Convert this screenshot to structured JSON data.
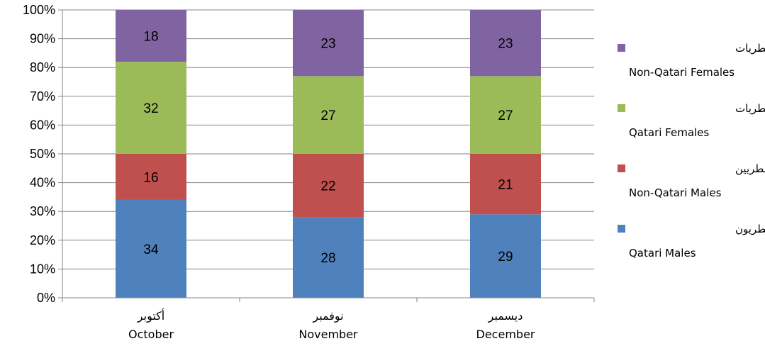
{
  "chart_data": {
    "type": "bar",
    "stacked": true,
    "percent_stacked": true,
    "categories": [
      {
        "ar": "أكتوبر",
        "en": "October"
      },
      {
        "ar": "نوفمبر",
        "en": "November"
      },
      {
        "ar": "ديسمبر",
        "en": "December"
      }
    ],
    "series": [
      {
        "name_ar": "ذكور قطريون",
        "name_en": "Qatari Males",
        "color": "#4F81BD",
        "values": [
          34,
          28,
          29
        ]
      },
      {
        "name_ar": "ذكور غير قطريين",
        "name_en": "Non-Qatari Males",
        "color": "#C0504D",
        "values": [
          16,
          22,
          21
        ]
      },
      {
        "name_ar": "إناث قطريات",
        "name_en": "Qatari Females",
        "color": "#9BBB59",
        "values": [
          32,
          27,
          27
        ]
      },
      {
        "name_ar": "إناث غير قطريات",
        "name_en": "Non-Qatari Females",
        "color": "#8064A2",
        "values": [
          18,
          23,
          23
        ]
      }
    ],
    "y_ticks": [
      "0%",
      "10%",
      "20%",
      "30%",
      "40%",
      "50%",
      "60%",
      "70%",
      "80%",
      "90%",
      "100%"
    ],
    "ylim": [
      0,
      100
    ],
    "grid": true,
    "legend_position": "right",
    "title": "",
    "xlabel": "",
    "ylabel": ""
  }
}
